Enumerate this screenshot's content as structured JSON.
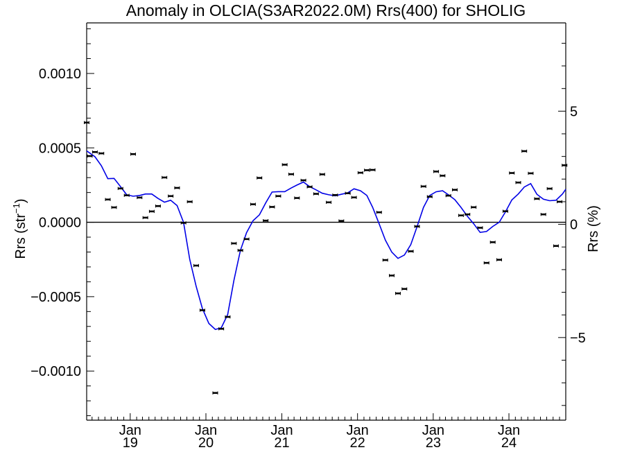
{
  "chart_data": {
    "type": "scatter",
    "title": "Anomaly in OLCIA(S3AR2022.0M) Rrs(400) for SHOLIG",
    "ylabel_left": {
      "main": "Rrs (str",
      "sup": "−1",
      "end": ")"
    },
    "ylabel_right": "Rrs (%)",
    "ylim": [
      -0.00133,
      0.00134
    ],
    "y_right_lim": [
      -8.65,
      8.9
    ],
    "left_ticks": [
      {
        "value": 0.001,
        "label": "0.0010"
      },
      {
        "value": 0.0005,
        "label": "0.0005"
      },
      {
        "value": 0.0,
        "label": "0.0000"
      },
      {
        "value": -0.0005,
        "label": "−0.0005"
      },
      {
        "value": -0.001,
        "label": "−0.0010"
      }
    ],
    "right_ticks": [
      {
        "value": 5,
        "label": "5"
      },
      {
        "value": 0,
        "label": "0"
      },
      {
        "value": -5,
        "label": "−5"
      }
    ],
    "xlim": [
      "2018-06-05",
      "2024-10-01"
    ],
    "x_ticks": [
      {
        "date": "2019-01-01",
        "month": "Jan",
        "year": "19"
      },
      {
        "date": "2020-01-01",
        "month": "Jan",
        "year": "20"
      },
      {
        "date": "2021-01-01",
        "month": "Jan",
        "year": "21"
      },
      {
        "date": "2022-01-01",
        "month": "Jan",
        "year": "22"
      },
      {
        "date": "2023-01-01",
        "month": "Jan",
        "year": "23"
      },
      {
        "date": "2024-01-01",
        "month": "Jan",
        "year": "24"
      }
    ],
    "zero_line": true,
    "series": [
      {
        "type": "scatter",
        "color": "#000000",
        "points": [
          [
            "2018-06-05",
            0.00067
          ],
          [
            "2018-06-20",
            0.000445
          ],
          [
            "2018-07-15",
            0.000472
          ],
          [
            "2018-08-15",
            0.000463
          ],
          [
            "2018-09-15",
            0.000153
          ],
          [
            "2018-10-15",
            0.0001
          ],
          [
            "2018-11-15",
            0.000227
          ],
          [
            "2018-12-15",
            0.000181
          ],
          [
            "2019-01-15",
            0.000458
          ],
          [
            "2019-02-15",
            0.000166
          ],
          [
            "2019-03-15",
            3.1e-05
          ],
          [
            "2019-04-15",
            7.3e-05
          ],
          [
            "2019-05-15",
            0.000109
          ],
          [
            "2019-06-15",
            0.000301
          ],
          [
            "2019-07-15",
            0.000176
          ],
          [
            "2019-08-15",
            0.000231
          ],
          [
            "2019-09-15",
            -4e-06
          ],
          [
            "2019-10-15",
            0.000138
          ],
          [
            "2019-11-15",
            -0.000291
          ],
          [
            "2019-12-15",
            -0.000591
          ],
          [
            "2020-02-15",
            -0.001147
          ],
          [
            "2020-03-15",
            -0.000716
          ],
          [
            "2020-04-15",
            -0.000636
          ],
          [
            "2020-05-15",
            -0.000142
          ],
          [
            "2020-06-15",
            -0.000189
          ],
          [
            "2020-07-15",
            -0.000113
          ],
          [
            "2020-08-15",
            0.000121
          ],
          [
            "2020-09-15",
            0.000298
          ],
          [
            "2020-10-15",
            1.1e-05
          ],
          [
            "2020-11-15",
            0.000103
          ],
          [
            "2020-12-15",
            0.000176
          ],
          [
            "2021-01-15",
            0.000387
          ],
          [
            "2021-02-15",
            0.000323
          ],
          [
            "2021-03-15",
            0.000163
          ],
          [
            "2021-04-15",
            0.000282
          ],
          [
            "2021-05-15",
            0.000238
          ],
          [
            "2021-06-15",
            0.000191
          ],
          [
            "2021-07-15",
            0.000322
          ],
          [
            "2021-08-15",
            0.000134
          ],
          [
            "2021-09-15",
            0.000183
          ],
          [
            "2021-10-15",
            9e-06
          ],
          [
            "2021-11-15",
            0.000195
          ],
          [
            "2021-12-15",
            0.000167
          ],
          [
            "2022-01-15",
            0.000333
          ],
          [
            "2022-02-15",
            0.00035
          ],
          [
            "2022-03-15",
            0.000352
          ],
          [
            "2022-04-15",
            6.7e-05
          ],
          [
            "2022-05-15",
            -0.000254
          ],
          [
            "2022-06-15",
            -0.000358
          ],
          [
            "2022-07-15",
            -0.000478
          ],
          [
            "2022-08-15",
            -0.000448
          ],
          [
            "2022-09-15",
            -0.000195
          ],
          [
            "2022-10-15",
            -2.8e-05
          ],
          [
            "2022-11-15",
            0.000241
          ],
          [
            "2022-12-15",
            0.000172
          ],
          [
            "2023-01-15",
            0.000341
          ],
          [
            "2023-02-15",
            0.000313
          ],
          [
            "2023-03-15",
            0.000179
          ],
          [
            "2023-04-15",
            0.000218
          ],
          [
            "2023-05-15",
            4.6e-05
          ],
          [
            "2023-06-15",
            5.3e-05
          ],
          [
            "2023-07-15",
            0.000101
          ],
          [
            "2023-08-15",
            -3.7e-05
          ],
          [
            "2023-09-15",
            -0.000273
          ],
          [
            "2023-10-15",
            -0.000134
          ],
          [
            "2023-11-15",
            -0.000252
          ],
          [
            "2023-12-15",
            7.4e-05
          ],
          [
            "2024-01-15",
            0.000331
          ],
          [
            "2024-02-15",
            0.000267
          ],
          [
            "2024-03-15",
            0.000478
          ],
          [
            "2024-04-15",
            0.000329
          ],
          [
            "2024-05-15",
            0.000158
          ],
          [
            "2024-06-15",
            5.3e-05
          ],
          [
            "2024-07-15",
            0.000226
          ],
          [
            "2024-08-15",
            -0.000159
          ],
          [
            "2024-09-01",
            0.000138
          ],
          [
            "2024-09-25",
            0.000383
          ]
        ]
      },
      {
        "type": "line",
        "color": "#0000e6",
        "points": [
          [
            "2018-06-05",
            0.00048
          ],
          [
            "2018-07-15",
            0.00044
          ],
          [
            "2018-08-15",
            0.00038
          ],
          [
            "2018-09-15",
            0.000293
          ],
          [
            "2018-10-15",
            0.000295
          ],
          [
            "2018-11-15",
            0.00024
          ],
          [
            "2018-12-15",
            0.000185
          ],
          [
            "2019-01-15",
            0.000175
          ],
          [
            "2019-02-15",
            0.00018
          ],
          [
            "2019-03-15",
            0.00019
          ],
          [
            "2019-04-15",
            0.00019
          ],
          [
            "2019-05-15",
            0.00016
          ],
          [
            "2019-06-15",
            0.000135
          ],
          [
            "2019-07-15",
            0.000148
          ],
          [
            "2019-08-15",
            0.000112
          ],
          [
            "2019-09-15",
            0.0
          ],
          [
            "2019-10-15",
            -0.00025
          ],
          [
            "2019-11-15",
            -0.00043
          ],
          [
            "2019-12-15",
            -0.00058
          ],
          [
            "2020-01-15",
            -0.00068
          ],
          [
            "2020-02-15",
            -0.00072
          ],
          [
            "2020-03-15",
            -0.00071
          ],
          [
            "2020-04-15",
            -0.00062
          ],
          [
            "2020-05-15",
            -0.00039
          ],
          [
            "2020-06-15",
            -0.00019
          ],
          [
            "2020-07-15",
            -7e-05
          ],
          [
            "2020-08-15",
            1e-05
          ],
          [
            "2020-09-15",
            5e-05
          ],
          [
            "2020-10-15",
            0.00013
          ],
          [
            "2020-11-15",
            0.000203
          ],
          [
            "2020-12-15",
            0.000206
          ],
          [
            "2021-01-15",
            0.000206
          ],
          [
            "2021-02-15",
            0.00023
          ],
          [
            "2021-03-15",
            0.00025
          ],
          [
            "2021-04-15",
            0.00027
          ],
          [
            "2021-05-15",
            0.00024
          ],
          [
            "2021-06-15",
            0.000218
          ],
          [
            "2021-07-15",
            0.000195
          ],
          [
            "2021-08-15",
            0.000185
          ],
          [
            "2021-09-15",
            0.000178
          ],
          [
            "2021-10-15",
            0.000188
          ],
          [
            "2021-11-15",
            0.000198
          ],
          [
            "2021-12-15",
            0.000225
          ],
          [
            "2022-01-15",
            0.000212
          ],
          [
            "2022-02-15",
            0.00018
          ],
          [
            "2022-03-15",
            0.0001
          ],
          [
            "2022-04-15",
            -1e-05
          ],
          [
            "2022-05-15",
            -0.00012
          ],
          [
            "2022-06-15",
            -0.0002
          ],
          [
            "2022-07-15",
            -0.000243
          ],
          [
            "2022-08-15",
            -0.00022
          ],
          [
            "2022-09-15",
            -0.00015
          ],
          [
            "2022-10-15",
            -3e-05
          ],
          [
            "2022-11-15",
            0.0001
          ],
          [
            "2022-12-15",
            0.00018
          ],
          [
            "2023-01-15",
            0.000205
          ],
          [
            "2023-02-15",
            0.000212
          ],
          [
            "2023-03-15",
            0.000185
          ],
          [
            "2023-04-15",
            0.000152
          ],
          [
            "2023-05-15",
            0.0001
          ],
          [
            "2023-06-15",
            4e-05
          ],
          [
            "2023-07-15",
            -1e-05
          ],
          [
            "2023-08-15",
            -6.8e-05
          ],
          [
            "2023-09-15",
            -6.2e-05
          ],
          [
            "2023-10-15",
            -2.8e-05
          ],
          [
            "2023-11-15",
            0.0
          ],
          [
            "2023-12-15",
            7e-05
          ],
          [
            "2024-01-15",
            0.00015
          ],
          [
            "2024-02-15",
            0.00019
          ],
          [
            "2024-03-15",
            0.000237
          ],
          [
            "2024-04-15",
            0.00026
          ],
          [
            "2024-05-15",
            0.000188
          ],
          [
            "2024-06-15",
            0.000155
          ],
          [
            "2024-07-15",
            0.000145
          ],
          [
            "2024-08-15",
            0.000148
          ],
          [
            "2024-09-15",
            0.00019
          ],
          [
            "2024-10-01",
            0.000222
          ]
        ]
      }
    ]
  }
}
